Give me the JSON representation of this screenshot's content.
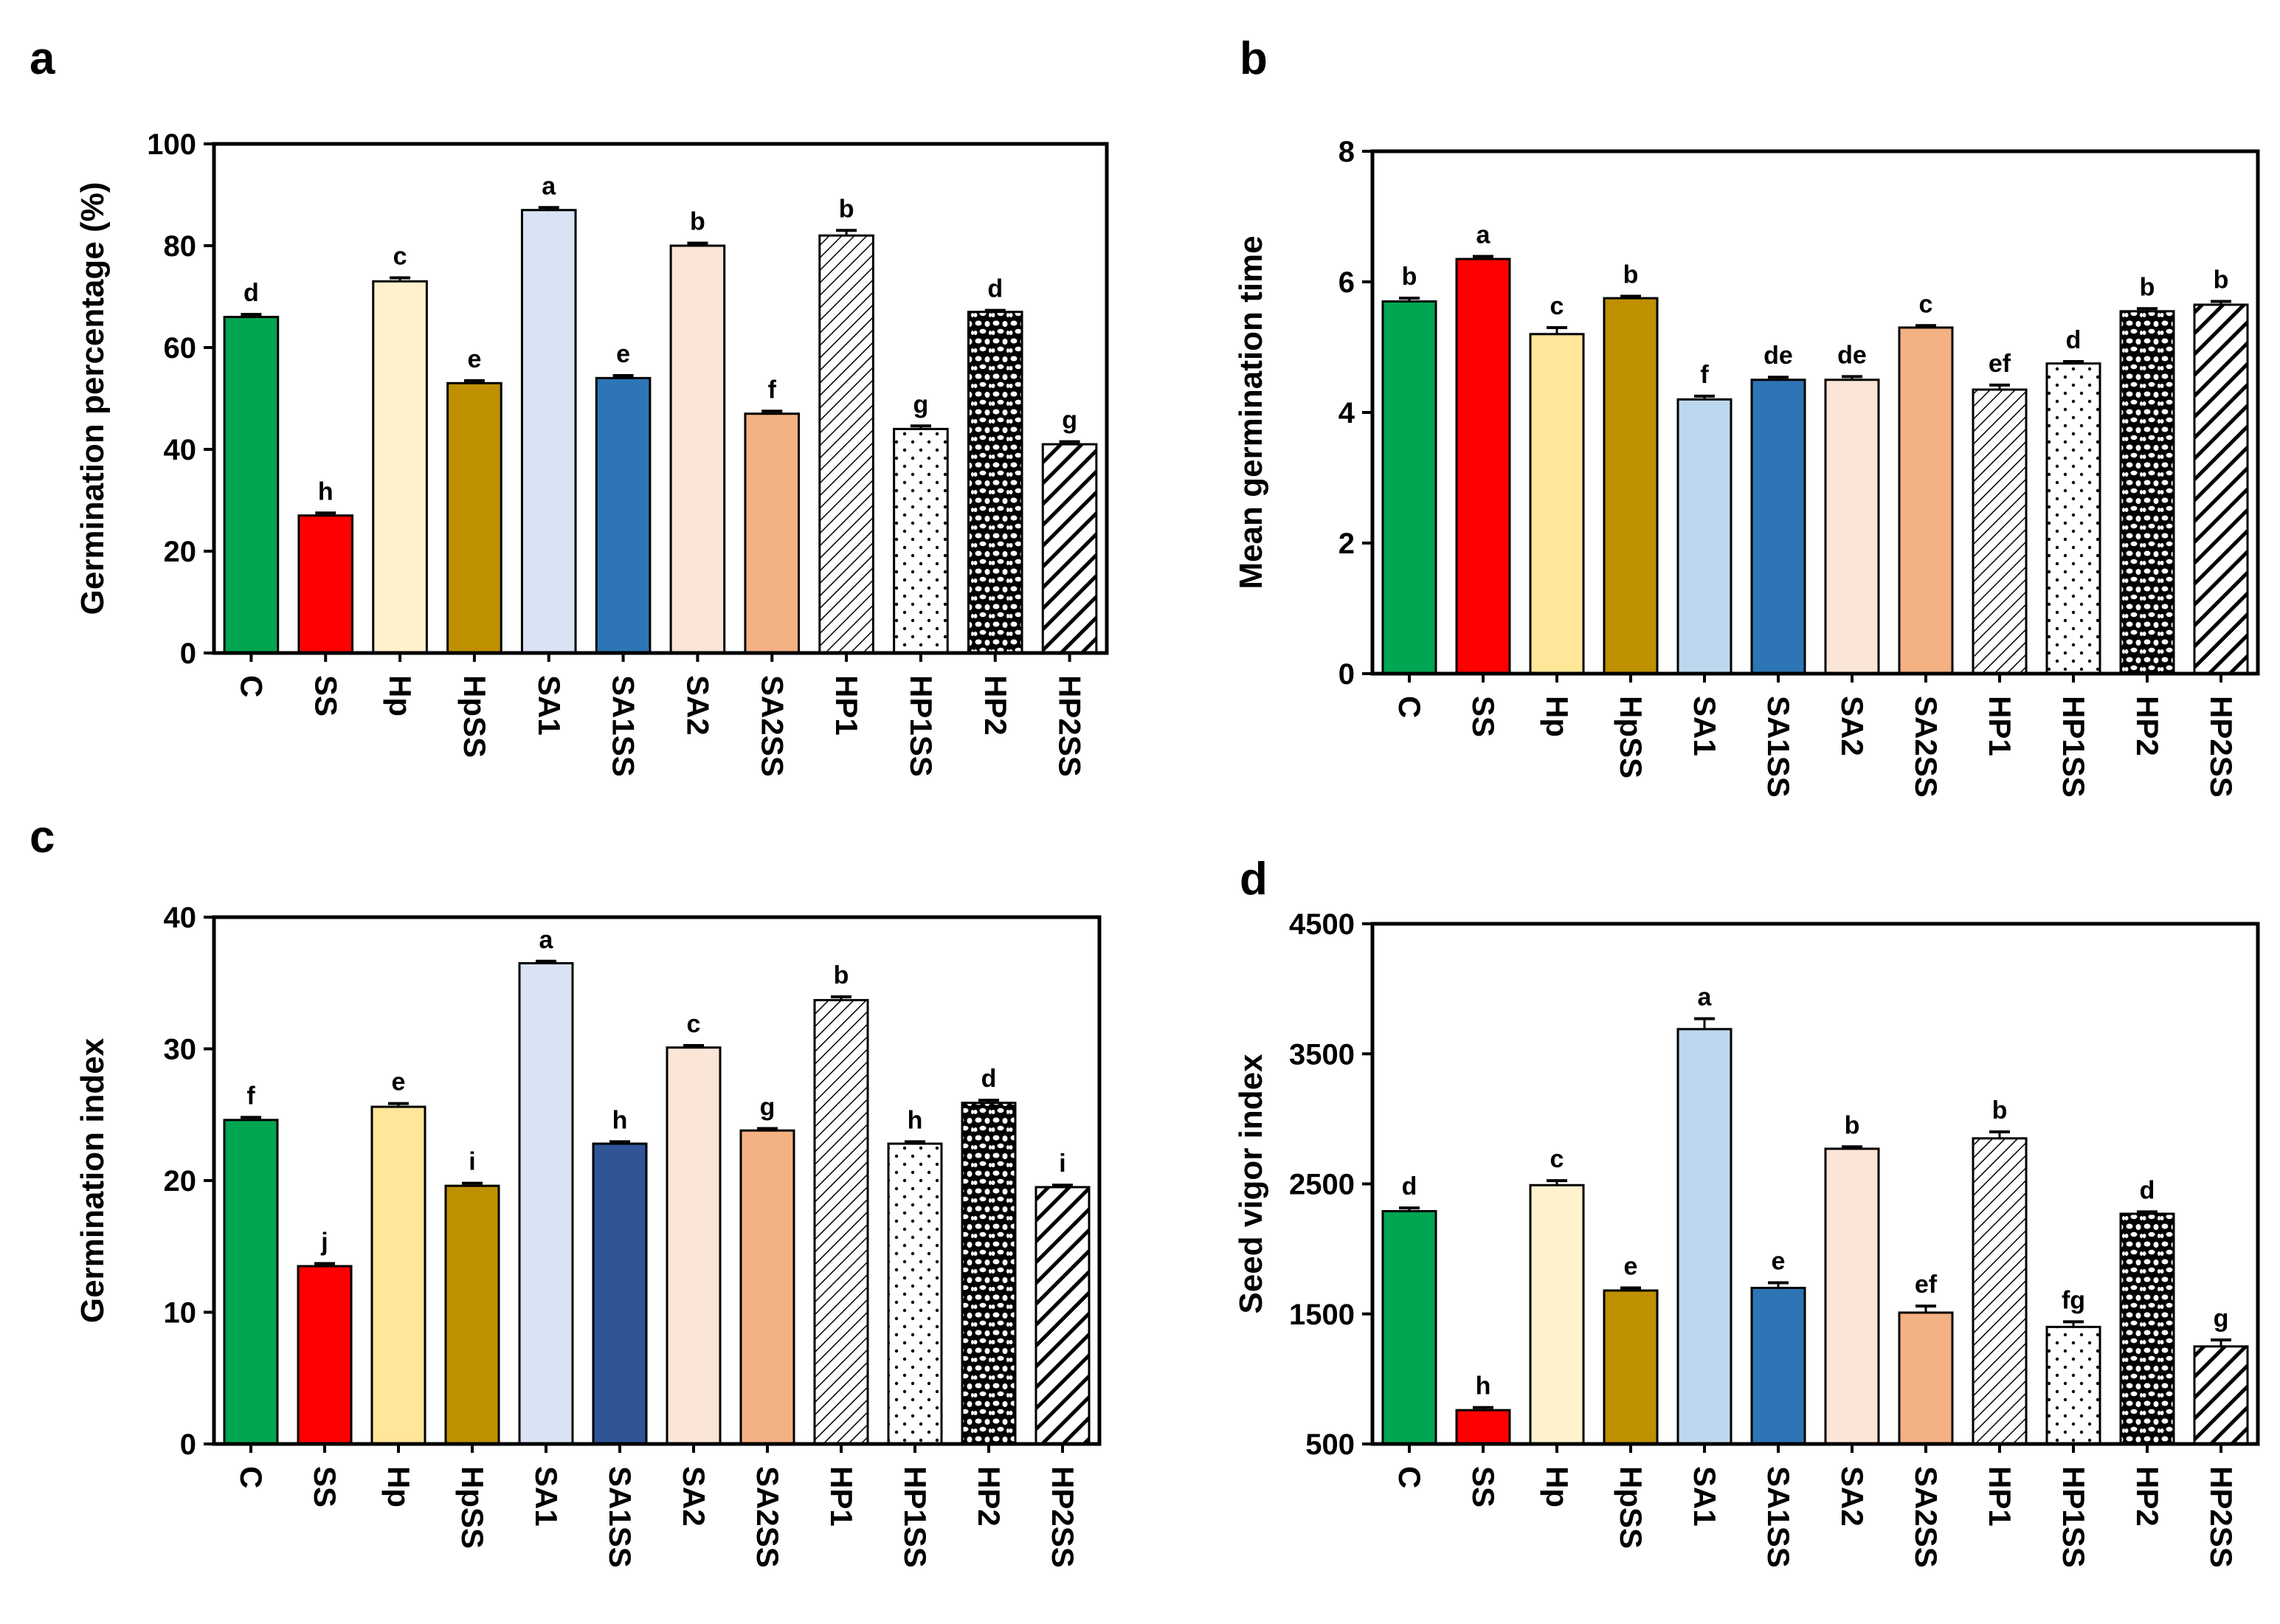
{
  "colors": {
    "C": "#00a651",
    "SS": "#ff0000",
    "Hp": "#fff2cc",
    "HpSS": "#bf9000",
    "SA1": "#dae3f3",
    "SA1SS": "#2e75b6",
    "SA2": "#fbe5d6",
    "SA2SS": "#f4b183",
    "pattern": "#ffffff",
    "ink": "#000000"
  },
  "chart_data": [
    {
      "panel": "a",
      "type": "bar",
      "title": "",
      "xlabel": "",
      "ylabel": "Germination percentage (%)",
      "ylim": [
        0,
        100
      ],
      "yticks": [
        0,
        20,
        40,
        60,
        80,
        100
      ],
      "categories": [
        "C",
        "SS",
        "Hp",
        "HpSS",
        "SA1",
        "SA1SS",
        "SA2",
        "SA2SS",
        "HP1",
        "HP1SS",
        "HP2",
        "HP2SS"
      ],
      "values": [
        66,
        27,
        73,
        53,
        87,
        54,
        80,
        47,
        82,
        44,
        67,
        41
      ],
      "errors": [
        0.5,
        0.5,
        0.7,
        0.5,
        0.5,
        0.5,
        0.5,
        0.5,
        1.0,
        0.6,
        0.3,
        0.5
      ],
      "fills": [
        "#00a651",
        "#ff0000",
        "#fff2cc",
        "#bf9000",
        "#dae3f3",
        "#2e75b6",
        "#fbe5d6",
        "#f4b183",
        "diag-thin",
        "dots",
        "gravel",
        "diag-bold"
      ],
      "letters": [
        "d",
        "h",
        "c",
        "e",
        "a",
        "e",
        "b",
        "f",
        "b",
        "g",
        "d",
        "g"
      ]
    },
    {
      "panel": "b",
      "type": "bar",
      "title": "",
      "xlabel": "",
      "ylabel": "Mean germination time",
      "ylim": [
        0,
        8
      ],
      "yticks": [
        0,
        2,
        4,
        6,
        8
      ],
      "categories": [
        "C",
        "SS",
        "Hp",
        "HpSS",
        "SA1",
        "SA1SS",
        "SA2",
        "SA2SS",
        "HP1",
        "HP1SS",
        "HP2",
        "HP2SS"
      ],
      "values": [
        5.7,
        6.35,
        5.2,
        5.75,
        4.2,
        4.5,
        4.5,
        5.3,
        4.35,
        4.75,
        5.55,
        5.65
      ],
      "errors": [
        0.05,
        0.04,
        0.1,
        0.03,
        0.05,
        0.04,
        0.05,
        0.03,
        0.07,
        0.03,
        0.04,
        0.05
      ],
      "fills": [
        "#00a651",
        "#ff0000",
        "#ffe699",
        "#bf9000",
        "#bdd7ee",
        "#2e75b6",
        "#fbe5d6",
        "#f4b183",
        "diag-thin",
        "dots",
        "gravel",
        "diag-bold"
      ],
      "letters": [
        "b",
        "a",
        "c",
        "b",
        "f",
        "de",
        "de",
        "c",
        "ef",
        "d",
        "b",
        "b"
      ]
    },
    {
      "panel": "c",
      "type": "bar",
      "title": "",
      "xlabel": "",
      "ylabel": "Germination index",
      "ylim": [
        0,
        40
      ],
      "yticks": [
        0,
        10,
        20,
        30,
        40
      ],
      "categories": [
        "C",
        "SS",
        "Hp",
        "HpSS",
        "SA1",
        "SA1SS",
        "SA2",
        "SA2SS",
        "HP1",
        "HP1SS",
        "HP2",
        "HP2SS"
      ],
      "values": [
        24.6,
        13.5,
        25.6,
        19.6,
        36.5,
        22.8,
        30.1,
        23.8,
        33.7,
        22.8,
        25.9,
        19.5
      ],
      "errors": [
        0.2,
        0.2,
        0.25,
        0.2,
        0.15,
        0.15,
        0.15,
        0.15,
        0.25,
        0.15,
        0.2,
        0.15
      ],
      "fills": [
        "#00a651",
        "#ff0000",
        "#ffe699",
        "#bf9000",
        "#dae3f3",
        "#2f5597",
        "#fbe5d6",
        "#f4b183",
        "diag-thin",
        "dots",
        "gravel",
        "diag-bold"
      ],
      "letters": [
        "f",
        "j",
        "e",
        "i",
        "a",
        "h",
        "c",
        "g",
        "b",
        "h",
        "d",
        "i"
      ]
    },
    {
      "panel": "d",
      "type": "bar",
      "title": "",
      "xlabel": "",
      "ylabel": "Seed vigor index",
      "ylim": [
        500,
        4500
      ],
      "yticks": [
        500,
        1500,
        2500,
        3500,
        4500
      ],
      "categories": [
        "C",
        "SS",
        "Hp",
        "HpSS",
        "SA1",
        "SA1SS",
        "SA2",
        "SA2SS",
        "HP1",
        "HP1SS",
        "HP2",
        "HP2SS"
      ],
      "values": [
        2290,
        760,
        2490,
        1680,
        3690,
        1700,
        2770,
        1510,
        2850,
        1400,
        2270,
        1250
      ],
      "errors": [
        25,
        20,
        35,
        20,
        80,
        40,
        15,
        50,
        50,
        40,
        15,
        50
      ],
      "fills": [
        "#00a651",
        "#ff0000",
        "#fff2cc",
        "#bf9000",
        "#bdd7ee",
        "#2e75b6",
        "#fbe5d6",
        "#f4b183",
        "diag-thin",
        "dots",
        "gravel",
        "diag-bold"
      ],
      "letters": [
        "d",
        "h",
        "c",
        "e",
        "a",
        "e",
        "b",
        "ef",
        "b",
        "fg",
        "d",
        "g"
      ]
    }
  ]
}
